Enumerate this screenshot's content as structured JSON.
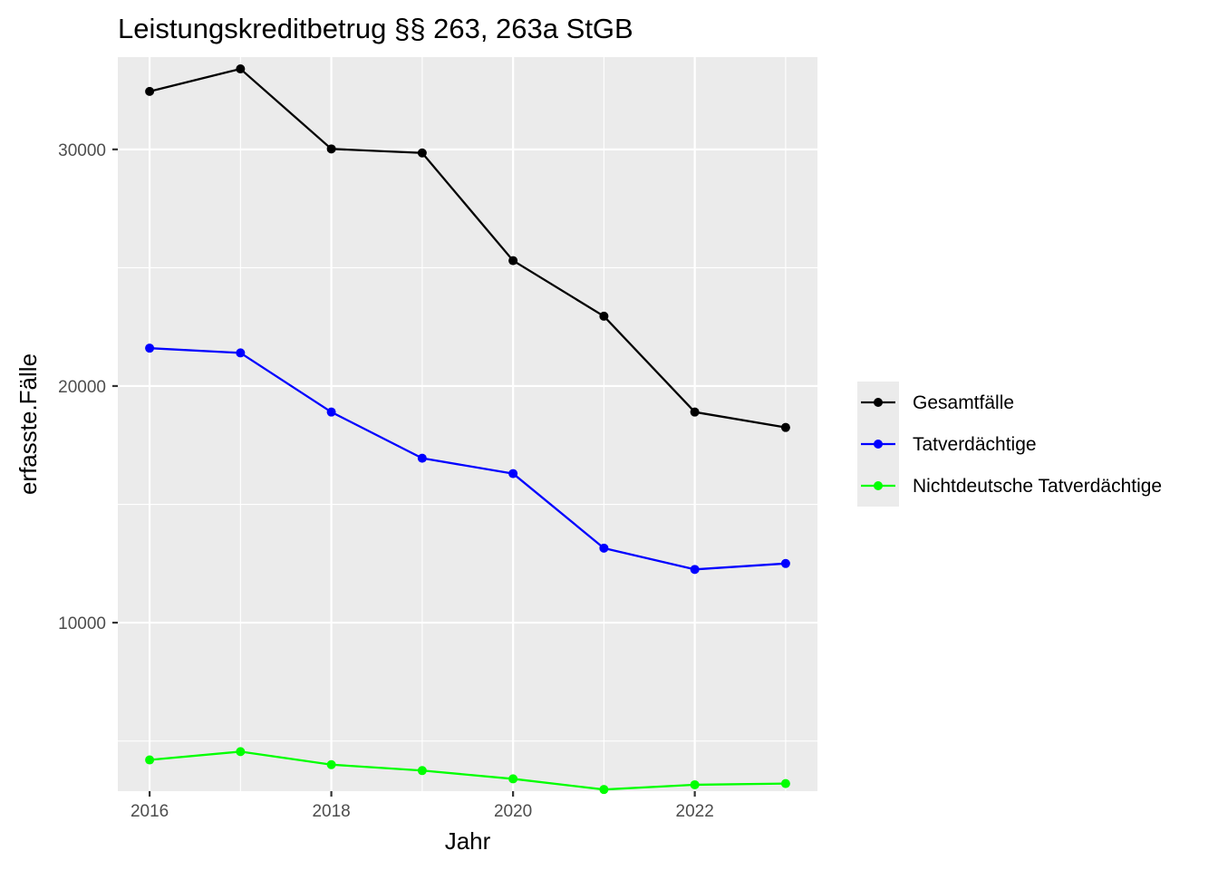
{
  "chart_data": {
    "type": "line",
    "title": "Leistungskreditbetrug §§ 263, 263a StGB",
    "xlabel": "Jahr",
    "ylabel": "erfasste.Fälle",
    "x": [
      2016,
      2017,
      2018,
      2019,
      2020,
      2021,
      2022,
      2023
    ],
    "xlim": [
      2015.65,
      2023.35
    ],
    "ylim": [
      2880,
      33900
    ],
    "xticks": [
      2016,
      2018,
      2020,
      2022
    ],
    "yticks": [
      10000,
      20000,
      30000
    ],
    "grid": true,
    "legend_position": "right",
    "series": [
      {
        "name": "Gesamtfälle",
        "color": "#000000",
        "values": [
          32450,
          33400,
          30020,
          29850,
          25300,
          22950,
          18900,
          18250
        ]
      },
      {
        "name": "Tatverdächtige",
        "color": "#0000ff",
        "values": [
          21600,
          21400,
          18900,
          16950,
          16300,
          13150,
          12250,
          12500
        ]
      },
      {
        "name": "Nichtdeutsche Tatverdächtige",
        "color": "#00ff00",
        "values": [
          4200,
          4550,
          4000,
          3750,
          3400,
          2950,
          3150,
          3200
        ]
      }
    ]
  }
}
